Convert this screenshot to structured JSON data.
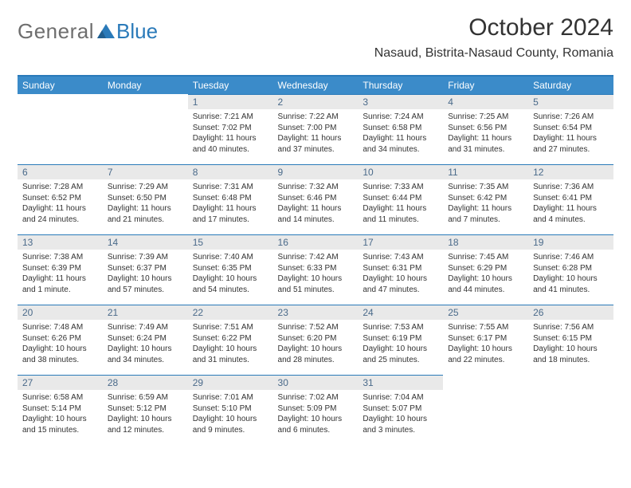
{
  "logo": {
    "general": "General",
    "blue": "Blue"
  },
  "header": {
    "month_title": "October 2024",
    "location": "Nasaud, Bistrita-Nasaud County, Romania"
  },
  "colors": {
    "header_bg": "#3b8bc9",
    "accent_line": "#2a7ab9",
    "daynum_bg": "#e9e9e9",
    "daynum_color": "#4a6a8a",
    "text": "#333333",
    "logo_gray": "#6e6e6e",
    "logo_blue": "#2a7ab9"
  },
  "weekdays": [
    "Sunday",
    "Monday",
    "Tuesday",
    "Wednesday",
    "Thursday",
    "Friday",
    "Saturday"
  ],
  "weeks": [
    [
      {
        "blank": true
      },
      {
        "blank": true
      },
      {
        "day": "1",
        "sunrise": "Sunrise: 7:21 AM",
        "sunset": "Sunset: 7:02 PM",
        "daylight": "Daylight: 11 hours and 40 minutes."
      },
      {
        "day": "2",
        "sunrise": "Sunrise: 7:22 AM",
        "sunset": "Sunset: 7:00 PM",
        "daylight": "Daylight: 11 hours and 37 minutes."
      },
      {
        "day": "3",
        "sunrise": "Sunrise: 7:24 AM",
        "sunset": "Sunset: 6:58 PM",
        "daylight": "Daylight: 11 hours and 34 minutes."
      },
      {
        "day": "4",
        "sunrise": "Sunrise: 7:25 AM",
        "sunset": "Sunset: 6:56 PM",
        "daylight": "Daylight: 11 hours and 31 minutes."
      },
      {
        "day": "5",
        "sunrise": "Sunrise: 7:26 AM",
        "sunset": "Sunset: 6:54 PM",
        "daylight": "Daylight: 11 hours and 27 minutes."
      }
    ],
    [
      {
        "day": "6",
        "sunrise": "Sunrise: 7:28 AM",
        "sunset": "Sunset: 6:52 PM",
        "daylight": "Daylight: 11 hours and 24 minutes."
      },
      {
        "day": "7",
        "sunrise": "Sunrise: 7:29 AM",
        "sunset": "Sunset: 6:50 PM",
        "daylight": "Daylight: 11 hours and 21 minutes."
      },
      {
        "day": "8",
        "sunrise": "Sunrise: 7:31 AM",
        "sunset": "Sunset: 6:48 PM",
        "daylight": "Daylight: 11 hours and 17 minutes."
      },
      {
        "day": "9",
        "sunrise": "Sunrise: 7:32 AM",
        "sunset": "Sunset: 6:46 PM",
        "daylight": "Daylight: 11 hours and 14 minutes."
      },
      {
        "day": "10",
        "sunrise": "Sunrise: 7:33 AM",
        "sunset": "Sunset: 6:44 PM",
        "daylight": "Daylight: 11 hours and 11 minutes."
      },
      {
        "day": "11",
        "sunrise": "Sunrise: 7:35 AM",
        "sunset": "Sunset: 6:42 PM",
        "daylight": "Daylight: 11 hours and 7 minutes."
      },
      {
        "day": "12",
        "sunrise": "Sunrise: 7:36 AM",
        "sunset": "Sunset: 6:41 PM",
        "daylight": "Daylight: 11 hours and 4 minutes."
      }
    ],
    [
      {
        "day": "13",
        "sunrise": "Sunrise: 7:38 AM",
        "sunset": "Sunset: 6:39 PM",
        "daylight": "Daylight: 11 hours and 1 minute."
      },
      {
        "day": "14",
        "sunrise": "Sunrise: 7:39 AM",
        "sunset": "Sunset: 6:37 PM",
        "daylight": "Daylight: 10 hours and 57 minutes."
      },
      {
        "day": "15",
        "sunrise": "Sunrise: 7:40 AM",
        "sunset": "Sunset: 6:35 PM",
        "daylight": "Daylight: 10 hours and 54 minutes."
      },
      {
        "day": "16",
        "sunrise": "Sunrise: 7:42 AM",
        "sunset": "Sunset: 6:33 PM",
        "daylight": "Daylight: 10 hours and 51 minutes."
      },
      {
        "day": "17",
        "sunrise": "Sunrise: 7:43 AM",
        "sunset": "Sunset: 6:31 PM",
        "daylight": "Daylight: 10 hours and 47 minutes."
      },
      {
        "day": "18",
        "sunrise": "Sunrise: 7:45 AM",
        "sunset": "Sunset: 6:29 PM",
        "daylight": "Daylight: 10 hours and 44 minutes."
      },
      {
        "day": "19",
        "sunrise": "Sunrise: 7:46 AM",
        "sunset": "Sunset: 6:28 PM",
        "daylight": "Daylight: 10 hours and 41 minutes."
      }
    ],
    [
      {
        "day": "20",
        "sunrise": "Sunrise: 7:48 AM",
        "sunset": "Sunset: 6:26 PM",
        "daylight": "Daylight: 10 hours and 38 minutes."
      },
      {
        "day": "21",
        "sunrise": "Sunrise: 7:49 AM",
        "sunset": "Sunset: 6:24 PM",
        "daylight": "Daylight: 10 hours and 34 minutes."
      },
      {
        "day": "22",
        "sunrise": "Sunrise: 7:51 AM",
        "sunset": "Sunset: 6:22 PM",
        "daylight": "Daylight: 10 hours and 31 minutes."
      },
      {
        "day": "23",
        "sunrise": "Sunrise: 7:52 AM",
        "sunset": "Sunset: 6:20 PM",
        "daylight": "Daylight: 10 hours and 28 minutes."
      },
      {
        "day": "24",
        "sunrise": "Sunrise: 7:53 AM",
        "sunset": "Sunset: 6:19 PM",
        "daylight": "Daylight: 10 hours and 25 minutes."
      },
      {
        "day": "25",
        "sunrise": "Sunrise: 7:55 AM",
        "sunset": "Sunset: 6:17 PM",
        "daylight": "Daylight: 10 hours and 22 minutes."
      },
      {
        "day": "26",
        "sunrise": "Sunrise: 7:56 AM",
        "sunset": "Sunset: 6:15 PM",
        "daylight": "Daylight: 10 hours and 18 minutes."
      }
    ],
    [
      {
        "day": "27",
        "sunrise": "Sunrise: 6:58 AM",
        "sunset": "Sunset: 5:14 PM",
        "daylight": "Daylight: 10 hours and 15 minutes."
      },
      {
        "day": "28",
        "sunrise": "Sunrise: 6:59 AM",
        "sunset": "Sunset: 5:12 PM",
        "daylight": "Daylight: 10 hours and 12 minutes."
      },
      {
        "day": "29",
        "sunrise": "Sunrise: 7:01 AM",
        "sunset": "Sunset: 5:10 PM",
        "daylight": "Daylight: 10 hours and 9 minutes."
      },
      {
        "day": "30",
        "sunrise": "Sunrise: 7:02 AM",
        "sunset": "Sunset: 5:09 PM",
        "daylight": "Daylight: 10 hours and 6 minutes."
      },
      {
        "day": "31",
        "sunrise": "Sunrise: 7:04 AM",
        "sunset": "Sunset: 5:07 PM",
        "daylight": "Daylight: 10 hours and 3 minutes."
      },
      {
        "blank": true
      },
      {
        "blank": true
      }
    ]
  ]
}
